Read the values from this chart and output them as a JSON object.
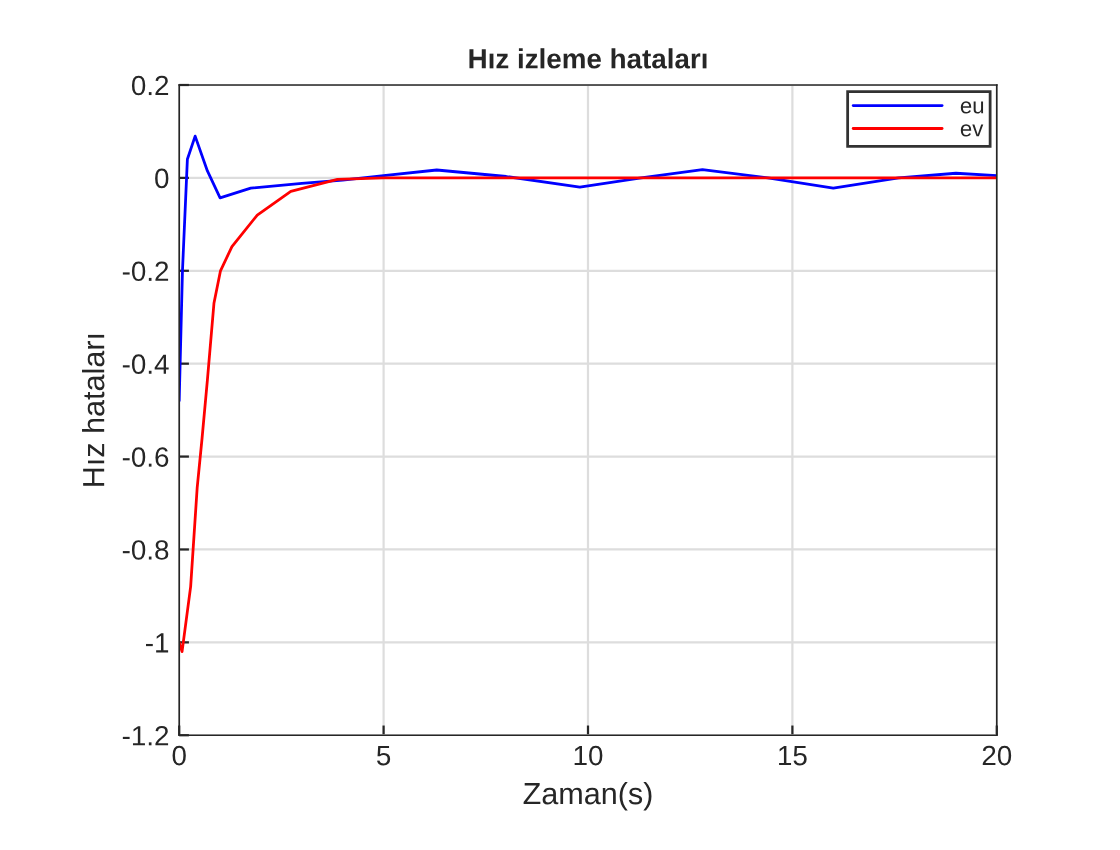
{
  "chart_data": {
    "type": "line",
    "title": "Hız izleme hataları",
    "xlabel": "Zaman(s)",
    "ylabel": "Hız hataları",
    "xlim": [
      0,
      20
    ],
    "ylim": [
      -1.2,
      0.2
    ],
    "xticks": [
      0,
      5,
      10,
      15,
      20
    ],
    "yticks": [
      -1.2,
      -1,
      -0.8,
      -0.6,
      -0.4,
      -0.2,
      0,
      0.2
    ],
    "grid": true,
    "legend": "top right",
    "series": [
      {
        "name": "eu",
        "color": "#0000ff",
        "x": [
          0,
          0.08,
          0.2,
          0.39,
          0.69,
          1.0,
          1.75,
          3.0,
          4.0,
          5.0,
          6.3,
          8.0,
          9.8,
          11.3,
          12.8,
          14.4,
          16.0,
          17.6,
          19.0,
          20.0
        ],
        "values": [
          -0.48,
          -0.2,
          0.04,
          0.09,
          0.015,
          -0.043,
          -0.022,
          -0.012,
          -0.005,
          0.005,
          0.017,
          0.003,
          -0.02,
          0.0,
          0.018,
          0.0,
          -0.022,
          0.0,
          0.01,
          0.005
        ]
      },
      {
        "name": "ev",
        "color": "#ff0000",
        "x": [
          0,
          0.07,
          0.28,
          0.44,
          0.56,
          0.69,
          0.85,
          1.01,
          1.29,
          1.91,
          2.73,
          3.87,
          5.0,
          10.0,
          15.0,
          20.0
        ],
        "values": [
          -1.0,
          -1.02,
          -0.88,
          -0.667,
          -0.56,
          -0.435,
          -0.27,
          -0.2,
          -0.148,
          -0.08,
          -0.029,
          -0.003,
          0.0,
          0.0,
          0.0,
          0.0
        ]
      }
    ]
  }
}
